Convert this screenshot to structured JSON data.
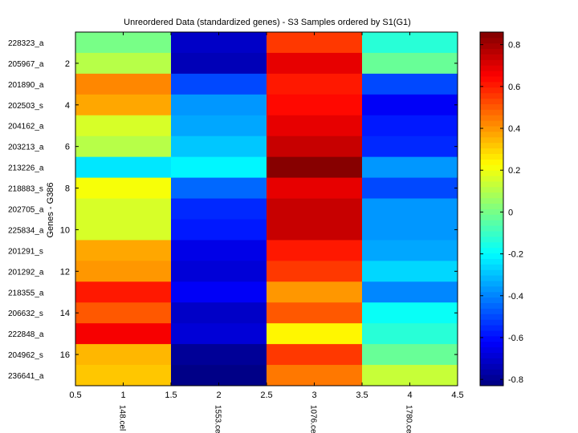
{
  "chart_data": {
    "type": "heatmap",
    "title": "Unreordered Data (standardized genes) - S3 Samples ordered by S1(G1)",
    "ylabel": "Genes - G386",
    "xlim": [
      0.5,
      4.5
    ],
    "ylim": [
      0.5,
      17.5
    ],
    "x_ticks": [
      "0.5",
      "1",
      "1.5",
      "2",
      "2.5",
      "3",
      "3.5",
      "4",
      "4.5"
    ],
    "y_ticks": [
      "2",
      "4",
      "6",
      "8",
      "10",
      "12",
      "14",
      "16"
    ],
    "columns": [
      "148.cel",
      "1553.cel",
      "1076.cel",
      "1780.cel"
    ],
    "rows": [
      "228323_a",
      "205967_a",
      "201890_a",
      "202503_s",
      "204162_a",
      "203213_a",
      "213226_a",
      "218883_s",
      "202705_a",
      "225834_a",
      "201291_s",
      "201292_a",
      "218355_a",
      "206632_s",
      "222848_a",
      "204962_s",
      "236641_a"
    ],
    "values": [
      [
        0.0,
        -0.71,
        0.55,
        -0.12
      ],
      [
        0.12,
        -0.75,
        0.68,
        -0.02
      ],
      [
        0.42,
        -0.5,
        0.6,
        -0.5
      ],
      [
        0.36,
        -0.38,
        0.64,
        -0.64
      ],
      [
        0.17,
        -0.34,
        0.68,
        -0.58
      ],
      [
        0.1,
        -0.28,
        0.73,
        -0.55
      ],
      [
        -0.23,
        -0.2,
        0.84,
        -0.38
      ],
      [
        0.22,
        -0.45,
        0.7,
        -0.5
      ],
      [
        0.17,
        -0.55,
        0.73,
        -0.38
      ],
      [
        0.16,
        -0.58,
        0.73,
        -0.36
      ],
      [
        0.37,
        -0.65,
        0.6,
        -0.35
      ],
      [
        0.4,
        -0.68,
        0.55,
        -0.25
      ],
      [
        0.6,
        -0.62,
        0.41,
        -0.4
      ],
      [
        0.5,
        -0.72,
        0.5,
        -0.19
      ],
      [
        0.65,
        -0.68,
        0.25,
        -0.13
      ],
      [
        0.35,
        -0.8,
        0.55,
        -0.03
      ],
      [
        0.33,
        -0.83,
        0.45,
        0.13
      ]
    ],
    "colorbar": {
      "min": -0.83,
      "max": 0.86,
      "ticks": [
        "0.8",
        "0.6",
        "0.4",
        "0.2",
        "0",
        "-0.2",
        "-0.4",
        "-0.6",
        "-0.8"
      ],
      "colormap": "jet"
    }
  }
}
